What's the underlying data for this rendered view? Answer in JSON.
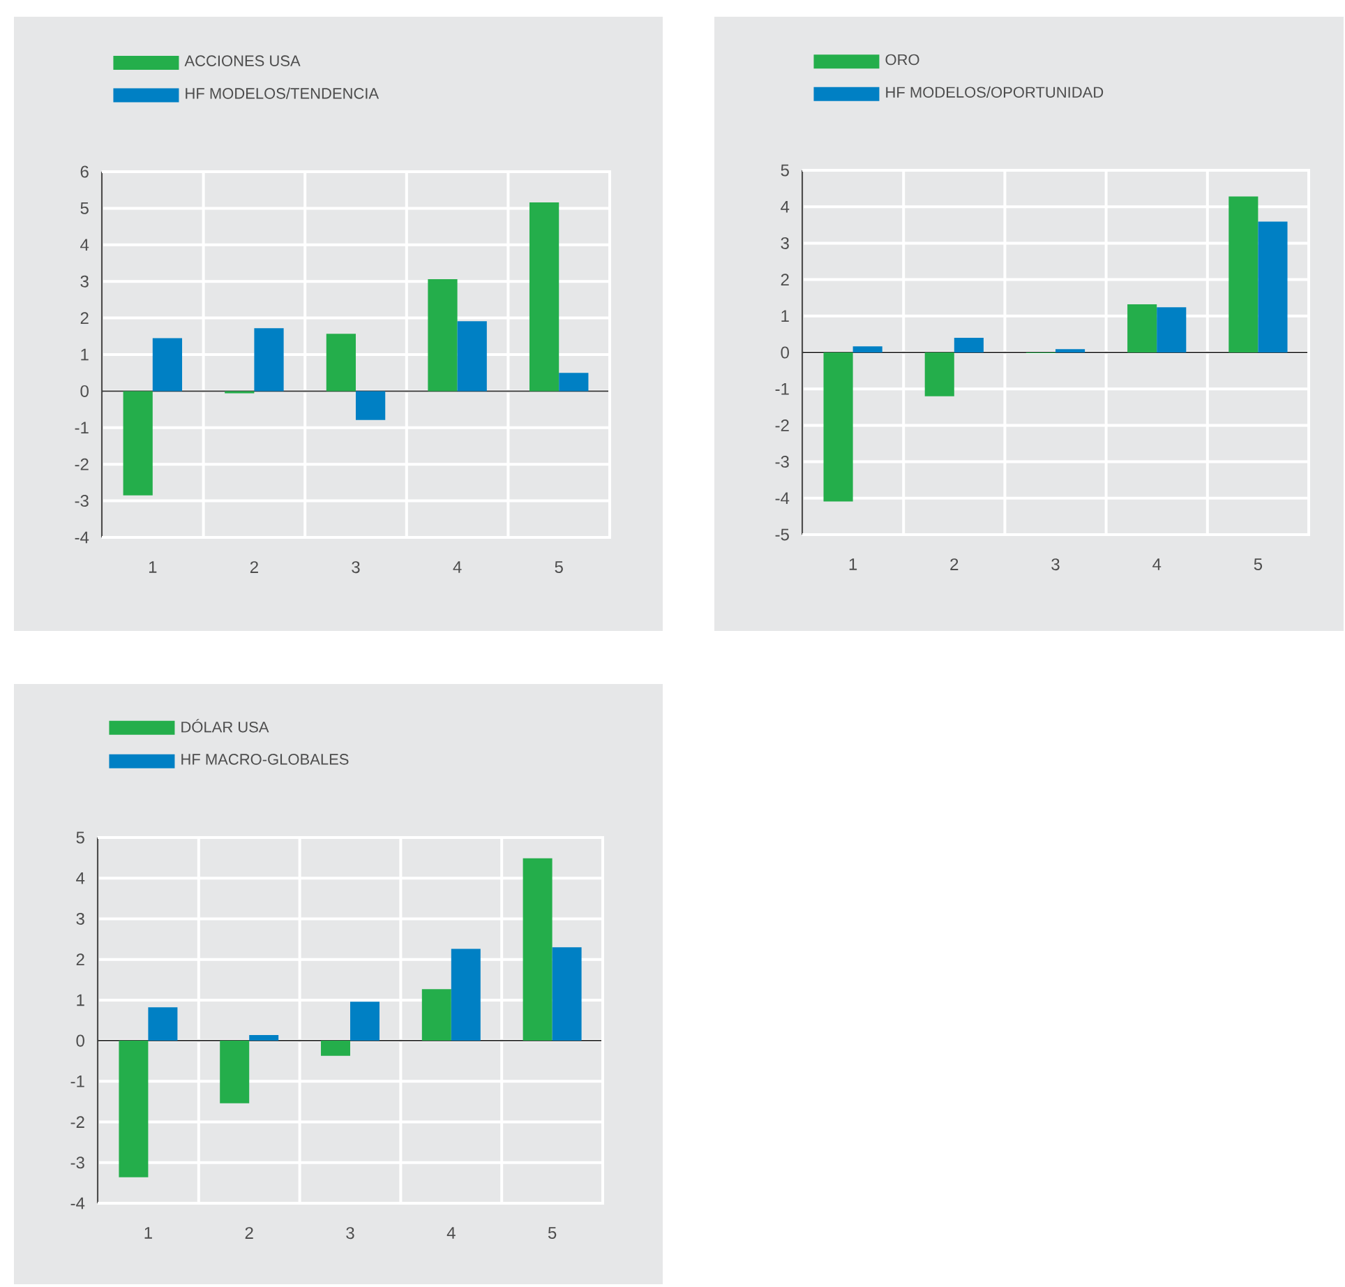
{
  "chart_data": [
    {
      "type": "bar",
      "categories": [
        "1",
        "2",
        "3",
        "4",
        "5"
      ],
      "series": [
        {
          "name": "ACCIONES USA",
          "color": "#24ae4b",
          "values": [
            -2.85,
            -0.06,
            1.57,
            3.06,
            5.16
          ]
        },
        {
          "name": "HF MODELOS/TENDENCIA",
          "color": "#0080c4",
          "values": [
            1.45,
            1.72,
            -0.79,
            1.91,
            0.5
          ]
        }
      ],
      "ylim": [
        -4,
        6
      ],
      "yticks": [
        -4,
        -3,
        -2,
        -1,
        0,
        1,
        2,
        3,
        4,
        5,
        6
      ],
      "grid": true,
      "legend": "top left"
    },
    {
      "type": "bar",
      "categories": [
        "1",
        "2",
        "3",
        "4",
        "5"
      ],
      "series": [
        {
          "name": "ORO",
          "color": "#24ae4b",
          "values": [
            -4.09,
            -1.2,
            -0.02,
            1.32,
            4.28
          ]
        },
        {
          "name": "HF MODELOS/OPORTUNIDAD",
          "color": "#0080c4",
          "values": [
            0.17,
            0.4,
            0.09,
            1.24,
            3.59
          ]
        }
      ],
      "ylim": [
        -5,
        5
      ],
      "yticks": [
        -5,
        -4,
        -3,
        -2,
        -1,
        0,
        1,
        2,
        3,
        4,
        5
      ],
      "grid": true,
      "legend": "top left"
    },
    {
      "type": "bar",
      "categories": [
        "1",
        "2",
        "3",
        "4",
        "5"
      ],
      "series": [
        {
          "name": "DÓLAR USA",
          "color": "#24ae4b",
          "values": [
            -3.36,
            -1.54,
            -0.37,
            1.27,
            4.49
          ]
        },
        {
          "name": "HF MACRO-GLOBALES",
          "color": "#0080c4",
          "values": [
            0.82,
            0.14,
            0.96,
            2.26,
            2.3
          ]
        }
      ],
      "ylim": [
        -4,
        5
      ],
      "yticks": [
        -4,
        -3,
        -2,
        -1,
        0,
        1,
        2,
        3,
        4,
        5
      ],
      "grid": true,
      "legend": "top left"
    }
  ]
}
